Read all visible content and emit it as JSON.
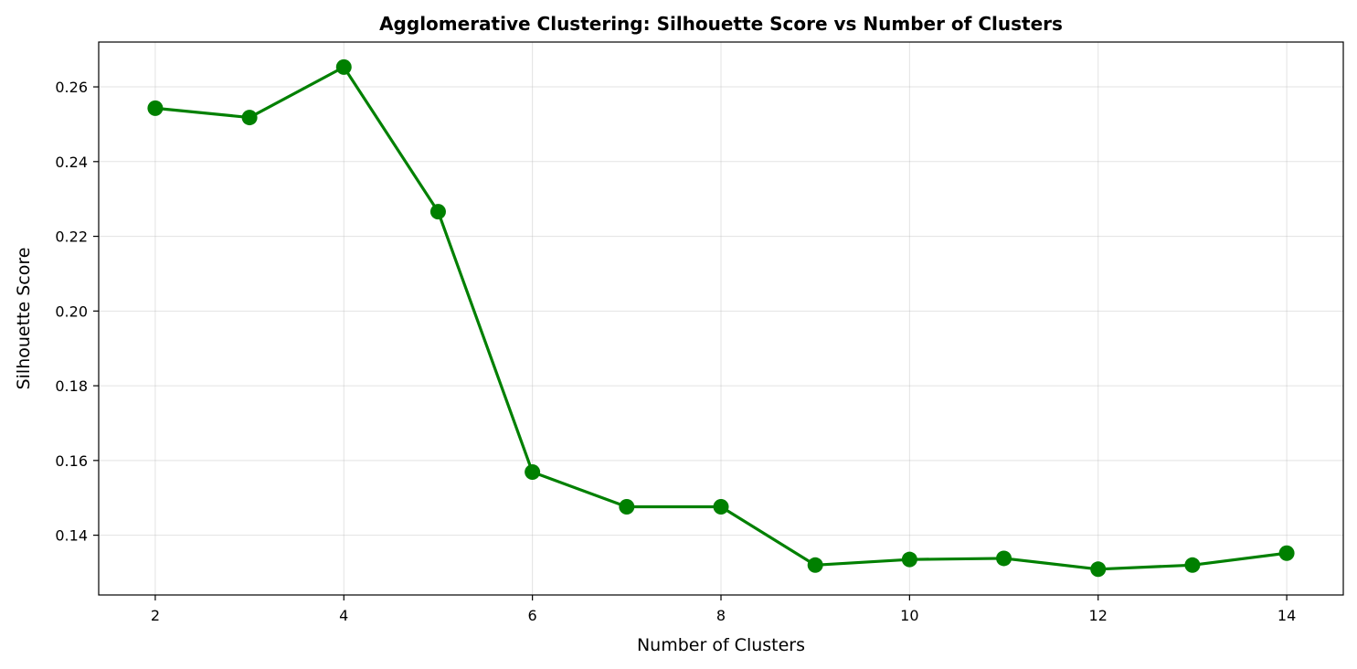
{
  "chart_data": {
    "type": "line",
    "title": "Agglomerative Clustering: Silhouette Score vs Number of Clusters",
    "xlabel": "Number of Clusters",
    "ylabel": "Silhouette Score",
    "xlim": [
      1.4,
      14.6
    ],
    "ylim": [
      0.124,
      0.272
    ],
    "xticks": [
      2,
      4,
      6,
      8,
      10,
      12,
      14
    ],
    "yticks": [
      0.14,
      0.16,
      0.18,
      0.2,
      0.22,
      0.24,
      0.26
    ],
    "ytick_labels": [
      "0.14",
      "0.16",
      "0.18",
      "0.20",
      "0.22",
      "0.24",
      "0.26"
    ],
    "grid": true,
    "colors": {
      "line": "#008000"
    },
    "series": [
      {
        "x": [
          2,
          3,
          4,
          5,
          6,
          7,
          8,
          9,
          10,
          11,
          12,
          13,
          14
        ],
        "values": [
          0.2543,
          0.2518,
          0.2653,
          0.2266,
          0.1569,
          0.1476,
          0.1476,
          0.132,
          0.1335,
          0.1338,
          0.1309,
          0.132,
          0.1352
        ]
      }
    ]
  }
}
